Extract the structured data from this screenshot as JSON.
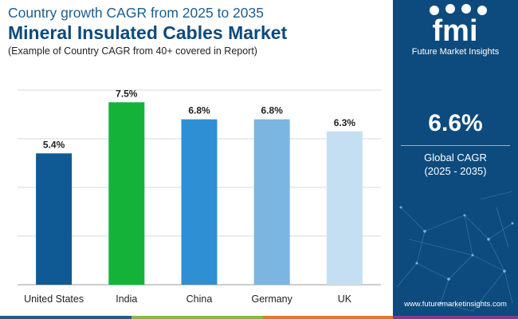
{
  "header": {
    "subtitle": "Country growth CAGR from 2025 to 2035",
    "title": "Mineral Insulated Cables Market",
    "note": "(Example of Country CAGR from 40+ covered in Report)"
  },
  "chart_data": {
    "type": "bar",
    "title": "Mineral Insulated Cables Market",
    "categories": [
      "United States",
      "India",
      "China",
      "Germany",
      "UK"
    ],
    "values": [
      5.4,
      7.5,
      6.8,
      6.8,
      6.3
    ],
    "labels": [
      "5.4%",
      "7.5%",
      "6.8%",
      "6.8%",
      "6.3%"
    ],
    "colors": [
      "#0f5a94",
      "#15b23a",
      "#2f8fd5",
      "#7ab6e0",
      "#c4dff1"
    ],
    "ylim": [
      0,
      8
    ],
    "unit": "%",
    "xlabel": "",
    "ylabel": "",
    "grid": true
  },
  "panel": {
    "logo_text": "fmi",
    "brand": "Future Market Insights",
    "global_value": "6.6%",
    "global_label": "Global CAGR",
    "global_period": "(2025 - 2035)",
    "url": "www.futuremarketinsights.com"
  },
  "colors": {
    "panel_bg": "#0d4b7e",
    "title": "#0d4a7d",
    "strip": [
      "#1b5e8f",
      "#7cbf3c",
      "#e07b2a",
      "#7a3f8f"
    ]
  }
}
